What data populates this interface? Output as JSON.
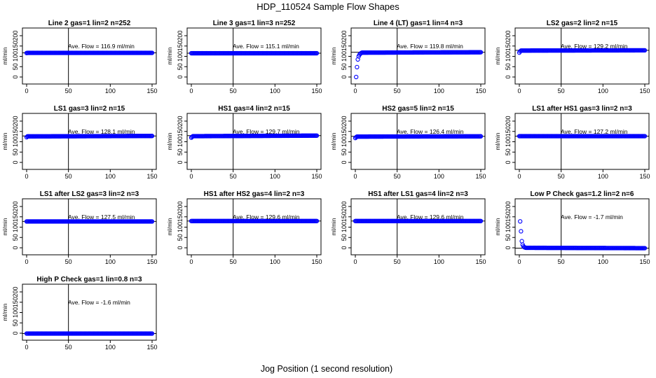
{
  "title": "HDP_110524  Sample Flow Shapes",
  "xlabel": "Jog Position (1 second resolution)",
  "colors": {
    "points": "#0000ff",
    "axes": "#000000",
    "background": "#ffffff"
  },
  "chart_data": [
    {
      "type": "scatter",
      "title": "Line 2 gas=1 lin=2 n=252",
      "ylabel": "ml/min",
      "xlim": [
        0,
        150
      ],
      "ylim": [
        0,
        200
      ],
      "xticks": [
        0,
        50,
        100,
        150
      ],
      "yticks": [
        0,
        50,
        100,
        150,
        200
      ],
      "vline": 50,
      "annotation": "Ave. Flow =  116.9  ml/min",
      "mean": 116.9,
      "x_range": [
        0,
        150
      ],
      "points": [
        [
          0,
          116
        ],
        [
          1,
          116.9
        ],
        [
          150,
          116.9
        ]
      ]
    },
    {
      "type": "scatter",
      "title": "Line 3 gas=1 lin=3 n=252",
      "ylabel": "ml/min",
      "xlim": [
        0,
        150
      ],
      "ylim": [
        0,
        200
      ],
      "xticks": [
        0,
        50,
        100,
        150
      ],
      "yticks": [
        0,
        50,
        100,
        150,
        200
      ],
      "vline": 50,
      "annotation": "Ave. Flow =  115.1  ml/min",
      "mean": 115.1,
      "x_range": [
        0,
        150
      ],
      "points": [
        [
          0,
          115.1
        ],
        [
          150,
          115.1
        ]
      ]
    },
    {
      "type": "scatter",
      "title": "Line 4 (LT) gas=1 lin=4 n=3",
      "ylabel": "ml/min",
      "xlim": [
        0,
        150
      ],
      "ylim": [
        0,
        200
      ],
      "xticks": [
        0,
        50,
        100,
        150
      ],
      "yticks": [
        0,
        50,
        100,
        150,
        200
      ],
      "vline": 50,
      "annotation": "Ave. Flow =  119.8  ml/min",
      "mean": 119.8,
      "x_range": [
        0,
        150
      ],
      "points": [
        [
          1,
          0
        ],
        [
          2,
          48
        ],
        [
          3,
          85
        ],
        [
          4,
          100
        ],
        [
          5,
          108
        ],
        [
          6,
          113
        ],
        [
          7,
          116
        ],
        [
          8,
          118
        ],
        [
          150,
          119.8
        ]
      ]
    },
    {
      "type": "scatter",
      "title": "LS2 gas=2 lin=2 n=15",
      "ylabel": "ml/min",
      "xlim": [
        0,
        150
      ],
      "ylim": [
        0,
        200
      ],
      "xticks": [
        0,
        50,
        100,
        150
      ],
      "yticks": [
        0,
        50,
        100,
        150,
        200
      ],
      "vline": 50,
      "annotation": "Ave. Flow =  129.2  ml/min",
      "mean": 129.2,
      "x_range": [
        0,
        150
      ],
      "points": [
        [
          0,
          118
        ],
        [
          1,
          124
        ],
        [
          2,
          128
        ],
        [
          150,
          129.2
        ]
      ]
    },
    {
      "type": "scatter",
      "title": "LS1 gas=3 lin=2 n=15",
      "ylabel": "ml/min",
      "xlim": [
        0,
        150
      ],
      "ylim": [
        0,
        200
      ],
      "xticks": [
        0,
        50,
        100,
        150
      ],
      "yticks": [
        0,
        50,
        100,
        150,
        200
      ],
      "vline": 50,
      "annotation": "Ave. Flow =  128.1  ml/min",
      "mean": 128.1,
      "x_range": [
        0,
        150
      ],
      "points": [
        [
          0,
          122
        ],
        [
          1,
          126
        ],
        [
          150,
          128.1
        ]
      ]
    },
    {
      "type": "scatter",
      "title": "HS1 gas=4 lin=2 n=15",
      "ylabel": "ml/min",
      "xlim": [
        0,
        150
      ],
      "ylim": [
        0,
        200
      ],
      "xticks": [
        0,
        50,
        100,
        150
      ],
      "yticks": [
        0,
        50,
        100,
        150,
        200
      ],
      "vline": 50,
      "annotation": "Ave. Flow =  129.7  ml/min",
      "mean": 129.7,
      "x_range": [
        0,
        150
      ],
      "points": [
        [
          0,
          120
        ],
        [
          1,
          124
        ],
        [
          2,
          127
        ],
        [
          150,
          129.7
        ]
      ]
    },
    {
      "type": "scatter",
      "title": "HS2 gas=5 lin=2 n=15",
      "ylabel": "ml/min",
      "xlim": [
        0,
        150
      ],
      "ylim": [
        0,
        200
      ],
      "xticks": [
        0,
        50,
        100,
        150
      ],
      "yticks": [
        0,
        50,
        100,
        150,
        200
      ],
      "vline": 50,
      "annotation": "Ave. Flow =  126.4  ml/min",
      "mean": 126.4,
      "x_range": [
        0,
        150
      ],
      "points": [
        [
          0,
          118
        ],
        [
          1,
          122
        ],
        [
          2,
          125
        ],
        [
          150,
          126.4
        ]
      ]
    },
    {
      "type": "scatter",
      "title": "LS1 after HS1 gas=3 lin=2 n=3",
      "ylabel": "ml/min",
      "xlim": [
        0,
        150
      ],
      "ylim": [
        0,
        200
      ],
      "xticks": [
        0,
        50,
        100,
        150
      ],
      "yticks": [
        0,
        50,
        100,
        150,
        200
      ],
      "vline": 50,
      "annotation": "Ave. Flow =  127.2  ml/min",
      "mean": 127.2,
      "x_range": [
        0,
        150
      ],
      "points": [
        [
          0,
          127.2
        ],
        [
          150,
          127.2
        ]
      ]
    },
    {
      "type": "scatter",
      "title": "LS1 after LS2 gas=3 lin=2 n=3",
      "ylabel": "ml/min",
      "xlim": [
        0,
        150
      ],
      "ylim": [
        0,
        200
      ],
      "xticks": [
        0,
        50,
        100,
        150
      ],
      "yticks": [
        0,
        50,
        100,
        150,
        200
      ],
      "vline": 50,
      "annotation": "Ave. Flow =  127.5  ml/min",
      "mean": 127.5,
      "x_range": [
        0,
        150
      ],
      "points": [
        [
          0,
          127.5
        ],
        [
          150,
          127.5
        ]
      ]
    },
    {
      "type": "scatter",
      "title": "HS1 after HS2 gas=4 lin=2 n=3",
      "ylabel": "ml/min",
      "xlim": [
        0,
        150
      ],
      "ylim": [
        0,
        200
      ],
      "xticks": [
        0,
        50,
        100,
        150
      ],
      "yticks": [
        0,
        50,
        100,
        150,
        200
      ],
      "vline": 50,
      "annotation": "Ave. Flow =  129.6  ml/min",
      "mean": 129.6,
      "x_range": [
        0,
        150
      ],
      "points": [
        [
          0,
          129.6
        ],
        [
          150,
          129.6
        ]
      ]
    },
    {
      "type": "scatter",
      "title": "HS1 after LS1 gas=4 lin=2 n=3",
      "ylabel": "ml/min",
      "xlim": [
        0,
        150
      ],
      "ylim": [
        0,
        200
      ],
      "xticks": [
        0,
        50,
        100,
        150
      ],
      "yticks": [
        0,
        50,
        100,
        150,
        200
      ],
      "vline": 50,
      "annotation": "Ave. Flow =  129.6  ml/min",
      "mean": 129.6,
      "x_range": [
        0,
        150
      ],
      "points": [
        [
          0,
          129.6
        ],
        [
          150,
          129.6
        ]
      ]
    },
    {
      "type": "scatter",
      "title": "Low P Check gas=1.2 lin=2 n=6",
      "ylabel": "ml/min",
      "xlim": [
        0,
        150
      ],
      "ylim": [
        0,
        200
      ],
      "xticks": [
        0,
        50,
        100,
        150
      ],
      "yticks": [
        0,
        50,
        100,
        150,
        200
      ],
      "vline": 50,
      "annotation": "Ave. Flow =  -1.7  ml/min",
      "mean": -1.7,
      "x_range": [
        0,
        150
      ],
      "points": [
        [
          1,
          128
        ],
        [
          2,
          80
        ],
        [
          3,
          32
        ],
        [
          4,
          15
        ],
        [
          5,
          7
        ],
        [
          6,
          3
        ],
        [
          7,
          1
        ],
        [
          8,
          0
        ],
        [
          150,
          -1.7
        ]
      ]
    },
    {
      "type": "scatter",
      "title": "High P Check gas=1 lin=0.8 n=3",
      "ylabel": "ml/min",
      "xlim": [
        0,
        150
      ],
      "ylim": [
        0,
        200
      ],
      "xticks": [
        0,
        50,
        100,
        150
      ],
      "yticks": [
        0,
        50,
        100,
        150,
        200
      ],
      "vline": 50,
      "annotation": "Ave. Flow =  -1.6  ml/min",
      "mean": -1.6,
      "x_range": [
        0,
        150
      ],
      "points": [
        [
          0,
          -1.6
        ],
        [
          150,
          -1.6
        ]
      ]
    }
  ]
}
